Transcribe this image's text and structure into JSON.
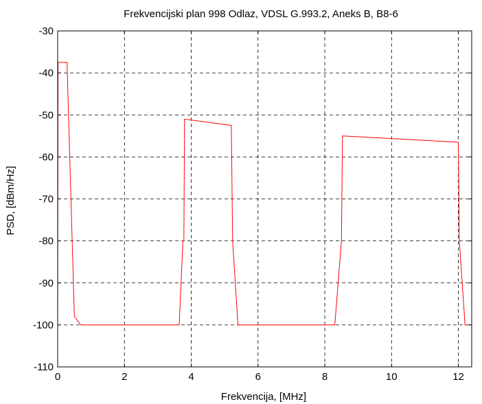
{
  "chart_data": {
    "type": "line",
    "title": "Frekvencijski plan 998 Odlaz, VDSL G.993.2, Aneks B, B8-6",
    "xlabel": "Frekvencija, [MHz]",
    "ylabel": "PSD, [dBm/Hz]",
    "xlim": [
      0,
      12.4
    ],
    "ylim": [
      -110,
      -30
    ],
    "xticks": [
      0,
      2,
      4,
      6,
      8,
      10,
      12
    ],
    "yticks": [
      -30,
      -40,
      -50,
      -60,
      -70,
      -80,
      -90,
      -100,
      -110
    ],
    "xtick_labels": [
      "0",
      "2",
      "4",
      "6",
      "8",
      "10",
      "12"
    ],
    "ytick_labels": [
      "-30",
      "-40",
      "-50",
      "-60",
      "-70",
      "-80",
      "-90",
      "-100",
      "-110"
    ],
    "grid": true,
    "grid_style": "dashed",
    "line_color": "#ff0000",
    "series": [
      {
        "x": [
          0,
          0.01,
          0.28,
          0.5,
          0.69,
          3.64,
          3.75,
          3.78,
          3.8,
          5.2,
          5.24,
          5.4,
          8.3,
          8.5,
          8.53,
          12.0,
          12.03,
          12.2,
          12.4
        ],
        "y": [
          -100,
          -37.5,
          -37.5,
          -98,
          -100,
          -100,
          -80,
          -80,
          -51,
          -52.5,
          -80,
          -100,
          -100,
          -80,
          -55,
          -56.5,
          -80,
          -100,
          -100
        ]
      }
    ]
  }
}
